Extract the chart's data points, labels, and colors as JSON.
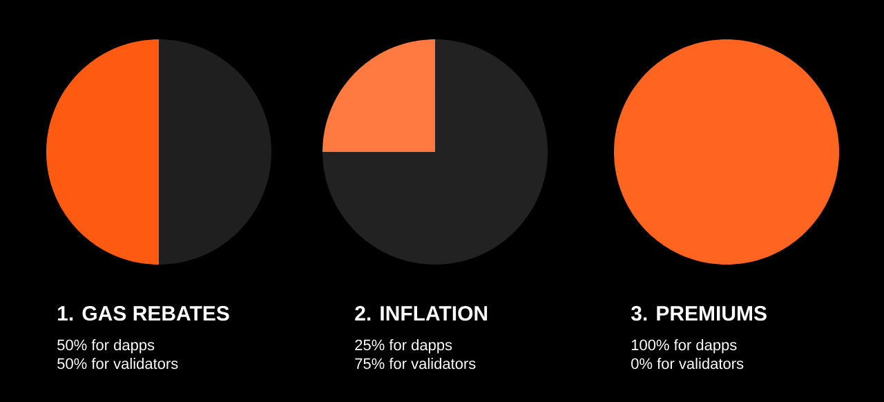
{
  "chart_data": [
    {
      "type": "pie",
      "title": "1. GAS REBATES",
      "categories": [
        null,
        null
      ],
      "values": [
        50,
        50
      ],
      "colors": [
        "#ff5a12",
        "#1f1f1f"
      ],
      "annotations": [
        "50% for dapps",
        "50% for validators"
      ]
    },
    {
      "type": "pie",
      "title": "2. INFLATION",
      "categories": [
        null,
        null
      ],
      "values": [
        25,
        75
      ],
      "colors": [
        "#ff7a40",
        "#222222"
      ],
      "annotations": [
        "25% for dapps",
        "75% for validators"
      ]
    },
    {
      "type": "pie",
      "title": "3. PREMIUMS",
      "categories": [
        null,
        null
      ],
      "values": [
        100,
        0
      ],
      "colors": [
        "#ff6420",
        "#222222"
      ],
      "annotations": [
        "100% for dapps",
        "0% for validators"
      ]
    }
  ]
}
